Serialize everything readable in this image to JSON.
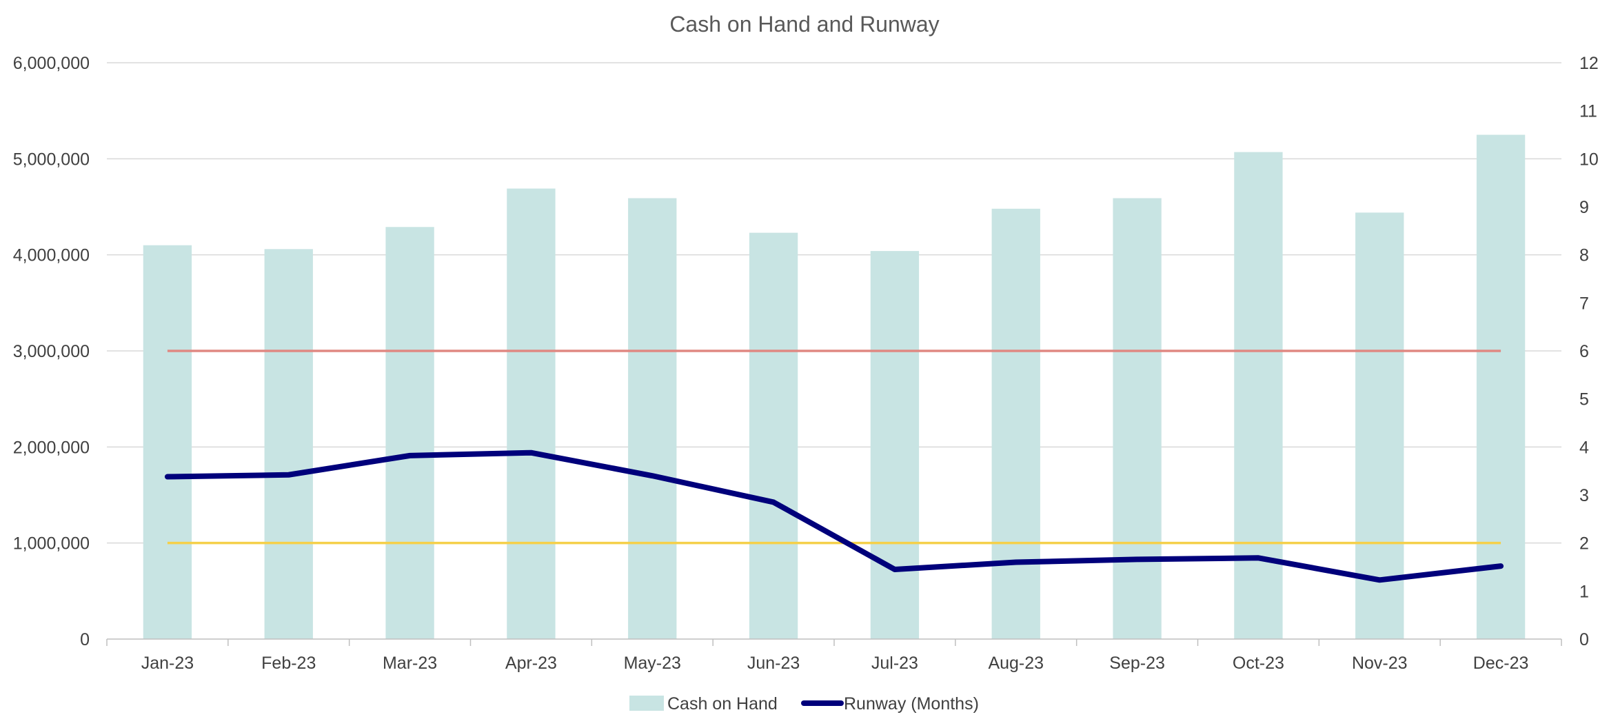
{
  "chart_data": {
    "type": "bar",
    "title": "Cash on Hand and Runway",
    "categories": [
      "Jan-23",
      "Feb-23",
      "Mar-23",
      "Apr-23",
      "May-23",
      "Jun-23",
      "Jul-23",
      "Aug-23",
      "Sep-23",
      "Oct-23",
      "Nov-23",
      "Dec-23"
    ],
    "series": [
      {
        "name": "Cash on Hand",
        "type": "bar",
        "axis": "left",
        "color": "#c8e4e3",
        "values": [
          4100000,
          4060000,
          4290000,
          4690000,
          4590000,
          4230000,
          4040000,
          4480000,
          4590000,
          5070000,
          4440000,
          5250000
        ]
      },
      {
        "name": "Runway (Months)",
        "type": "line",
        "axis": "right",
        "color": "#00007b",
        "values": [
          3.38,
          3.42,
          3.82,
          3.88,
          3.4,
          2.85,
          1.45,
          1.6,
          1.66,
          1.69,
          1.23,
          1.52
        ]
      },
      {
        "type": "line",
        "axis": "left",
        "color": "#e08882",
        "values": [
          3000000,
          3000000,
          3000000,
          3000000,
          3000000,
          3000000,
          3000000,
          3000000,
          3000000,
          3000000,
          3000000,
          3000000
        ]
      },
      {
        "type": "line",
        "axis": "left",
        "color": "#f5d04a",
        "values": [
          1000000,
          1000000,
          1000000,
          1000000,
          1000000,
          1000000,
          1000000,
          1000000,
          1000000,
          1000000,
          1000000,
          1000000
        ]
      }
    ],
    "y_left": {
      "min": 0,
      "max": 6000000,
      "ticks": [
        0,
        1000000,
        2000000,
        3000000,
        4000000,
        5000000,
        6000000
      ],
      "tick_labels": [
        "0",
        "1,000,000",
        "2,000,000",
        "3,000,000",
        "4,000,000",
        "5,000,000",
        "6,000,000"
      ]
    },
    "y_right": {
      "min": 0,
      "max": 12,
      "ticks": [
        0,
        1,
        2,
        3,
        4,
        5,
        6,
        7,
        8,
        9,
        10,
        11,
        12
      ],
      "tick_labels": [
        "0",
        "1",
        "2",
        "3",
        "4",
        "5",
        "6",
        "7",
        "8",
        "9",
        "10",
        "11",
        "12"
      ]
    },
    "grid": true,
    "legend": {
      "position": "bottom",
      "entries": [
        "Cash on Hand",
        "Runway (Months)"
      ]
    }
  }
}
